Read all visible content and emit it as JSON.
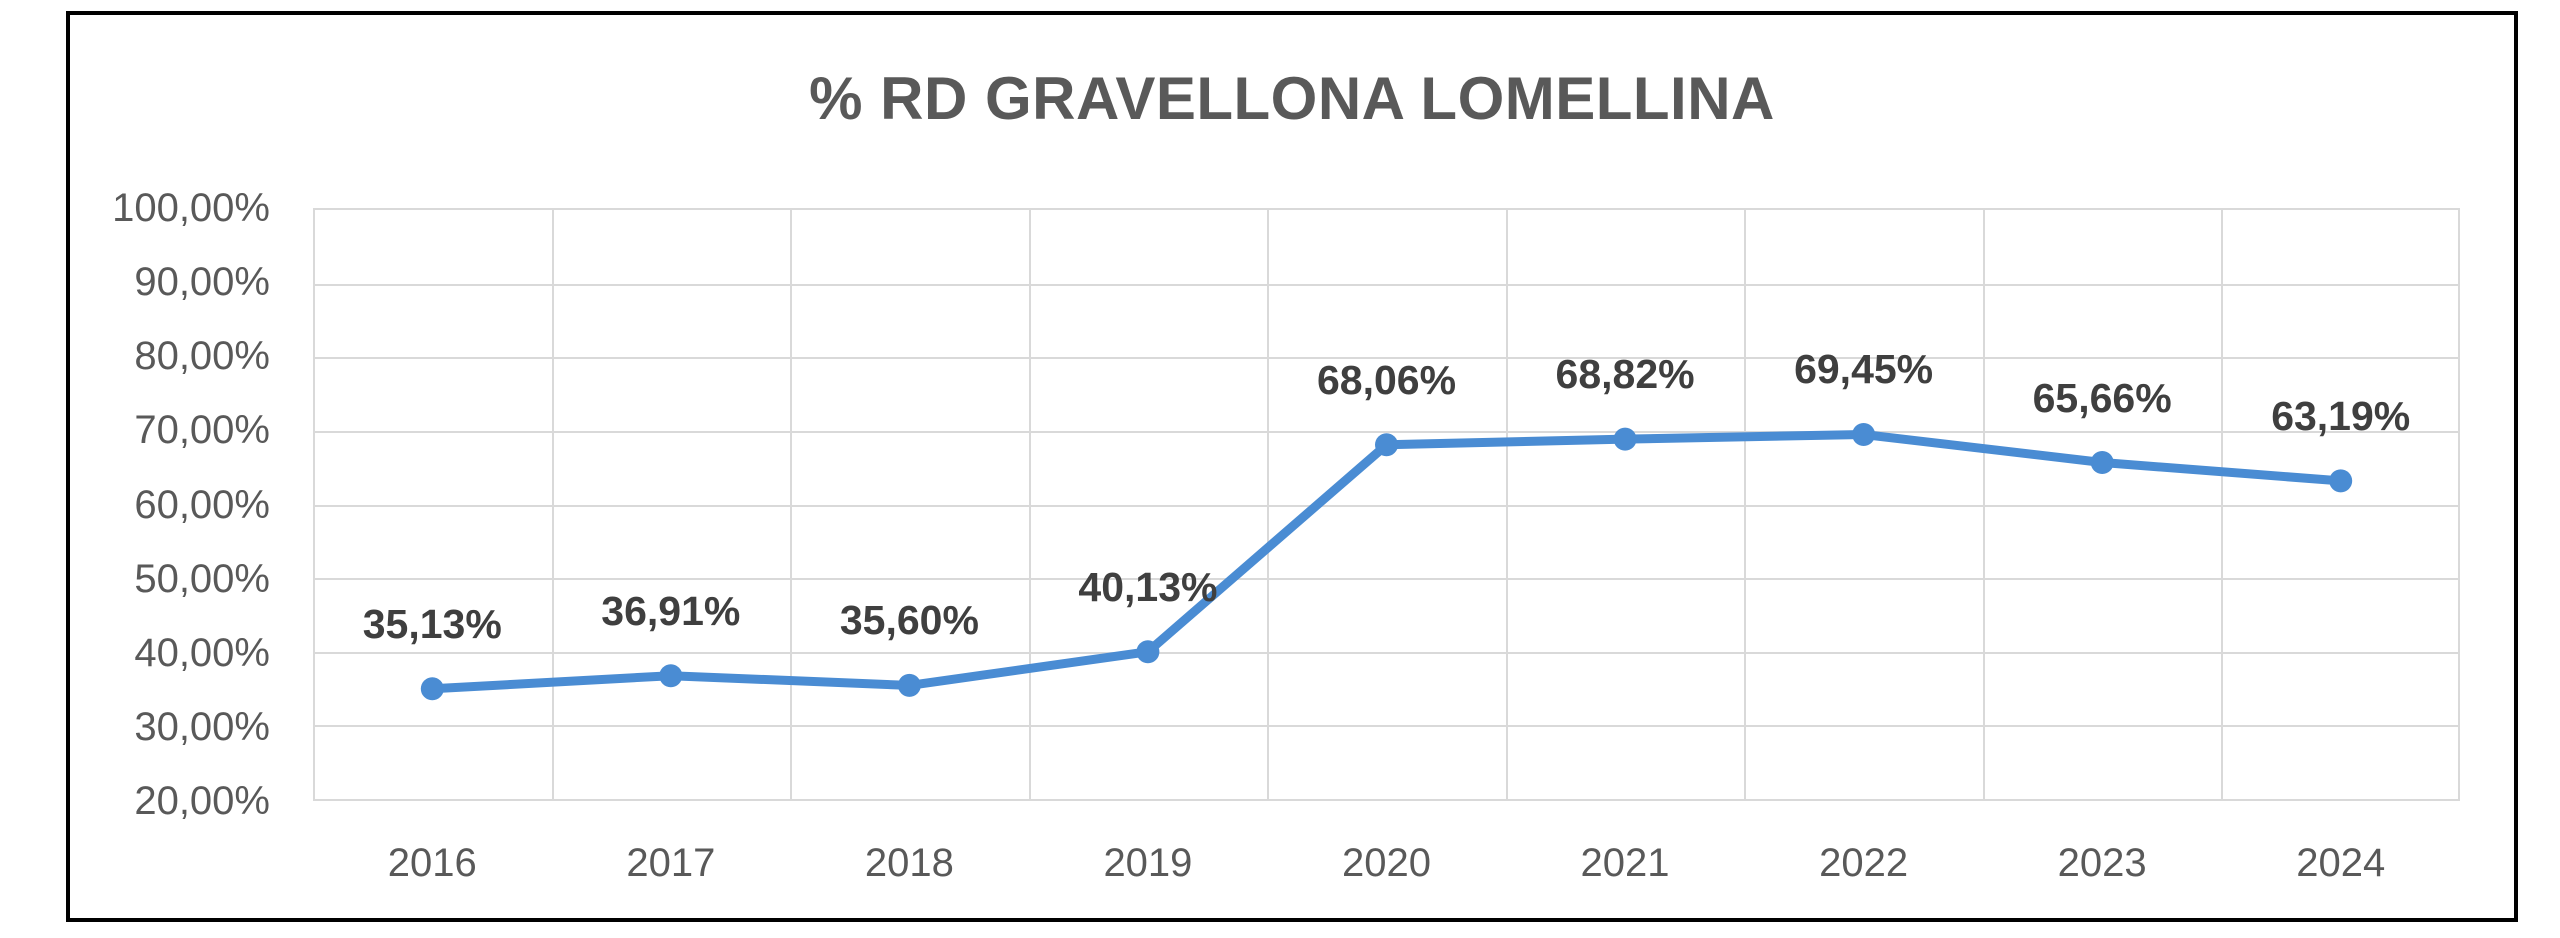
{
  "chart_data": {
    "type": "line",
    "title": "% RD GRAVELLONA LOMELLINA",
    "categories": [
      "2016",
      "2017",
      "2018",
      "2019",
      "2020",
      "2021",
      "2022",
      "2023",
      "2024"
    ],
    "values": [
      35.13,
      36.91,
      35.6,
      40.13,
      68.06,
      68.82,
      69.45,
      65.66,
      63.19
    ],
    "data_labels": [
      "35,13%",
      "36,91%",
      "35,60%",
      "40,13%",
      "68,06%",
      "68,82%",
      "69,45%",
      "65,66%",
      "63,19%"
    ],
    "y_tick_labels": [
      "100,00%",
      "90,00%",
      "80,00%",
      "70,00%",
      "60,00%",
      "50,00%",
      "40,00%",
      "30,00%",
      "20,00%"
    ],
    "ylim": [
      20,
      100
    ],
    "y_tick_step": 10,
    "xlabel": "",
    "ylabel": "",
    "grid": true,
    "legend": false,
    "colors": {
      "line": "#4a8cd3",
      "marker": "#4a8cd3",
      "grid": "#d9d9d9",
      "title": "#595959",
      "axis_text": "#595959",
      "data_label_text": "#3f3f3f",
      "frame_border": "#000000",
      "background": "#ffffff"
    }
  }
}
